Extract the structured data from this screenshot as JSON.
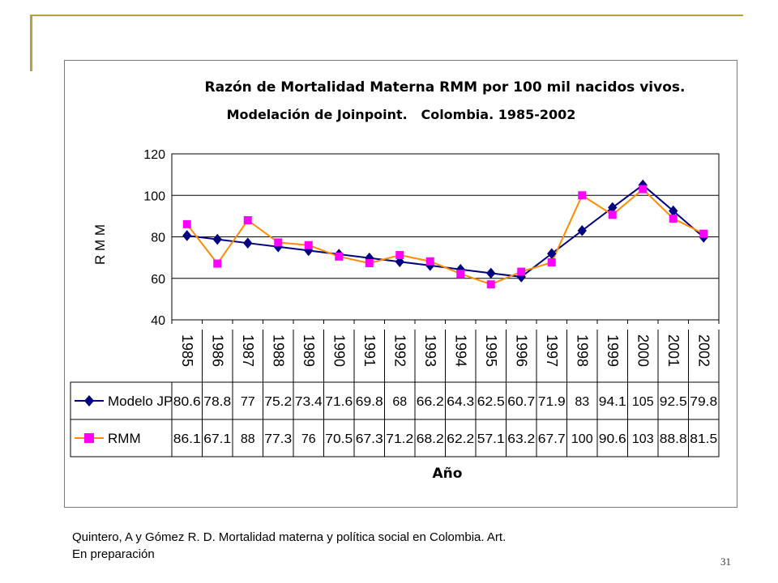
{
  "caption": {
    "line1": "Quintero, A y Gómez R. D. Mortalidad materna y política social en Colombia. Art.",
    "line2": "En preparación"
  },
  "page_number": "31",
  "colors": {
    "modelo": "#000080",
    "rmm_line": "#ff8c00",
    "rmm_marker": "#ff00ff",
    "decoration": "#b8a13a"
  },
  "chart_data": {
    "type": "line",
    "title": "Razón de Mortalidad Materna RMM por 100 mil nacidos vivos.",
    "subtitle": "Modelación de Joinpoint.   Colombia. 1985-2002",
    "xlabel": "Año",
    "ylabel": "R M M",
    "ylim": [
      40,
      120
    ],
    "yticks": [
      40,
      60,
      80,
      100,
      120
    ],
    "grid": true,
    "legend": "data-table",
    "categories": [
      "1985",
      "1986",
      "1987",
      "1988",
      "1989",
      "1990",
      "1991",
      "1992",
      "1993",
      "1994",
      "1995",
      "1996",
      "1997",
      "1998",
      "1999",
      "2000",
      "2001",
      "2002"
    ],
    "series": [
      {
        "name": "Modelo JP",
        "marker": "diamond",
        "values": [
          80.6,
          78.8,
          77,
          75.2,
          73.4,
          71.6,
          69.8,
          68,
          66.2,
          64.3,
          62.5,
          60.7,
          71.9,
          83,
          94.1,
          105,
          92.5,
          79.8
        ],
        "labels": [
          "80.6",
          "78.8",
          "77",
          "75.2",
          "73.4",
          "71.6",
          "69.8",
          "68",
          "66.2",
          "64.3",
          "62.5",
          "60.7",
          "71.9",
          "83",
          "94.1",
          "105",
          "92.5",
          "79.8"
        ]
      },
      {
        "name": "RMM",
        "marker": "square",
        "values": [
          86.1,
          67.1,
          88,
          77.3,
          76,
          70.5,
          67.3,
          71.2,
          68.2,
          62.2,
          57.1,
          63.2,
          67.7,
          100,
          90.6,
          103,
          88.8,
          81.5
        ],
        "labels": [
          "86.1",
          "67.1",
          "88",
          "77.3",
          "76",
          "70.5",
          "67.3",
          "71.2",
          "68.2",
          "62.2",
          "57.1",
          "63.2",
          "67.7",
          "100",
          "90.6",
          "103",
          "88.8",
          "81.5"
        ]
      }
    ]
  }
}
